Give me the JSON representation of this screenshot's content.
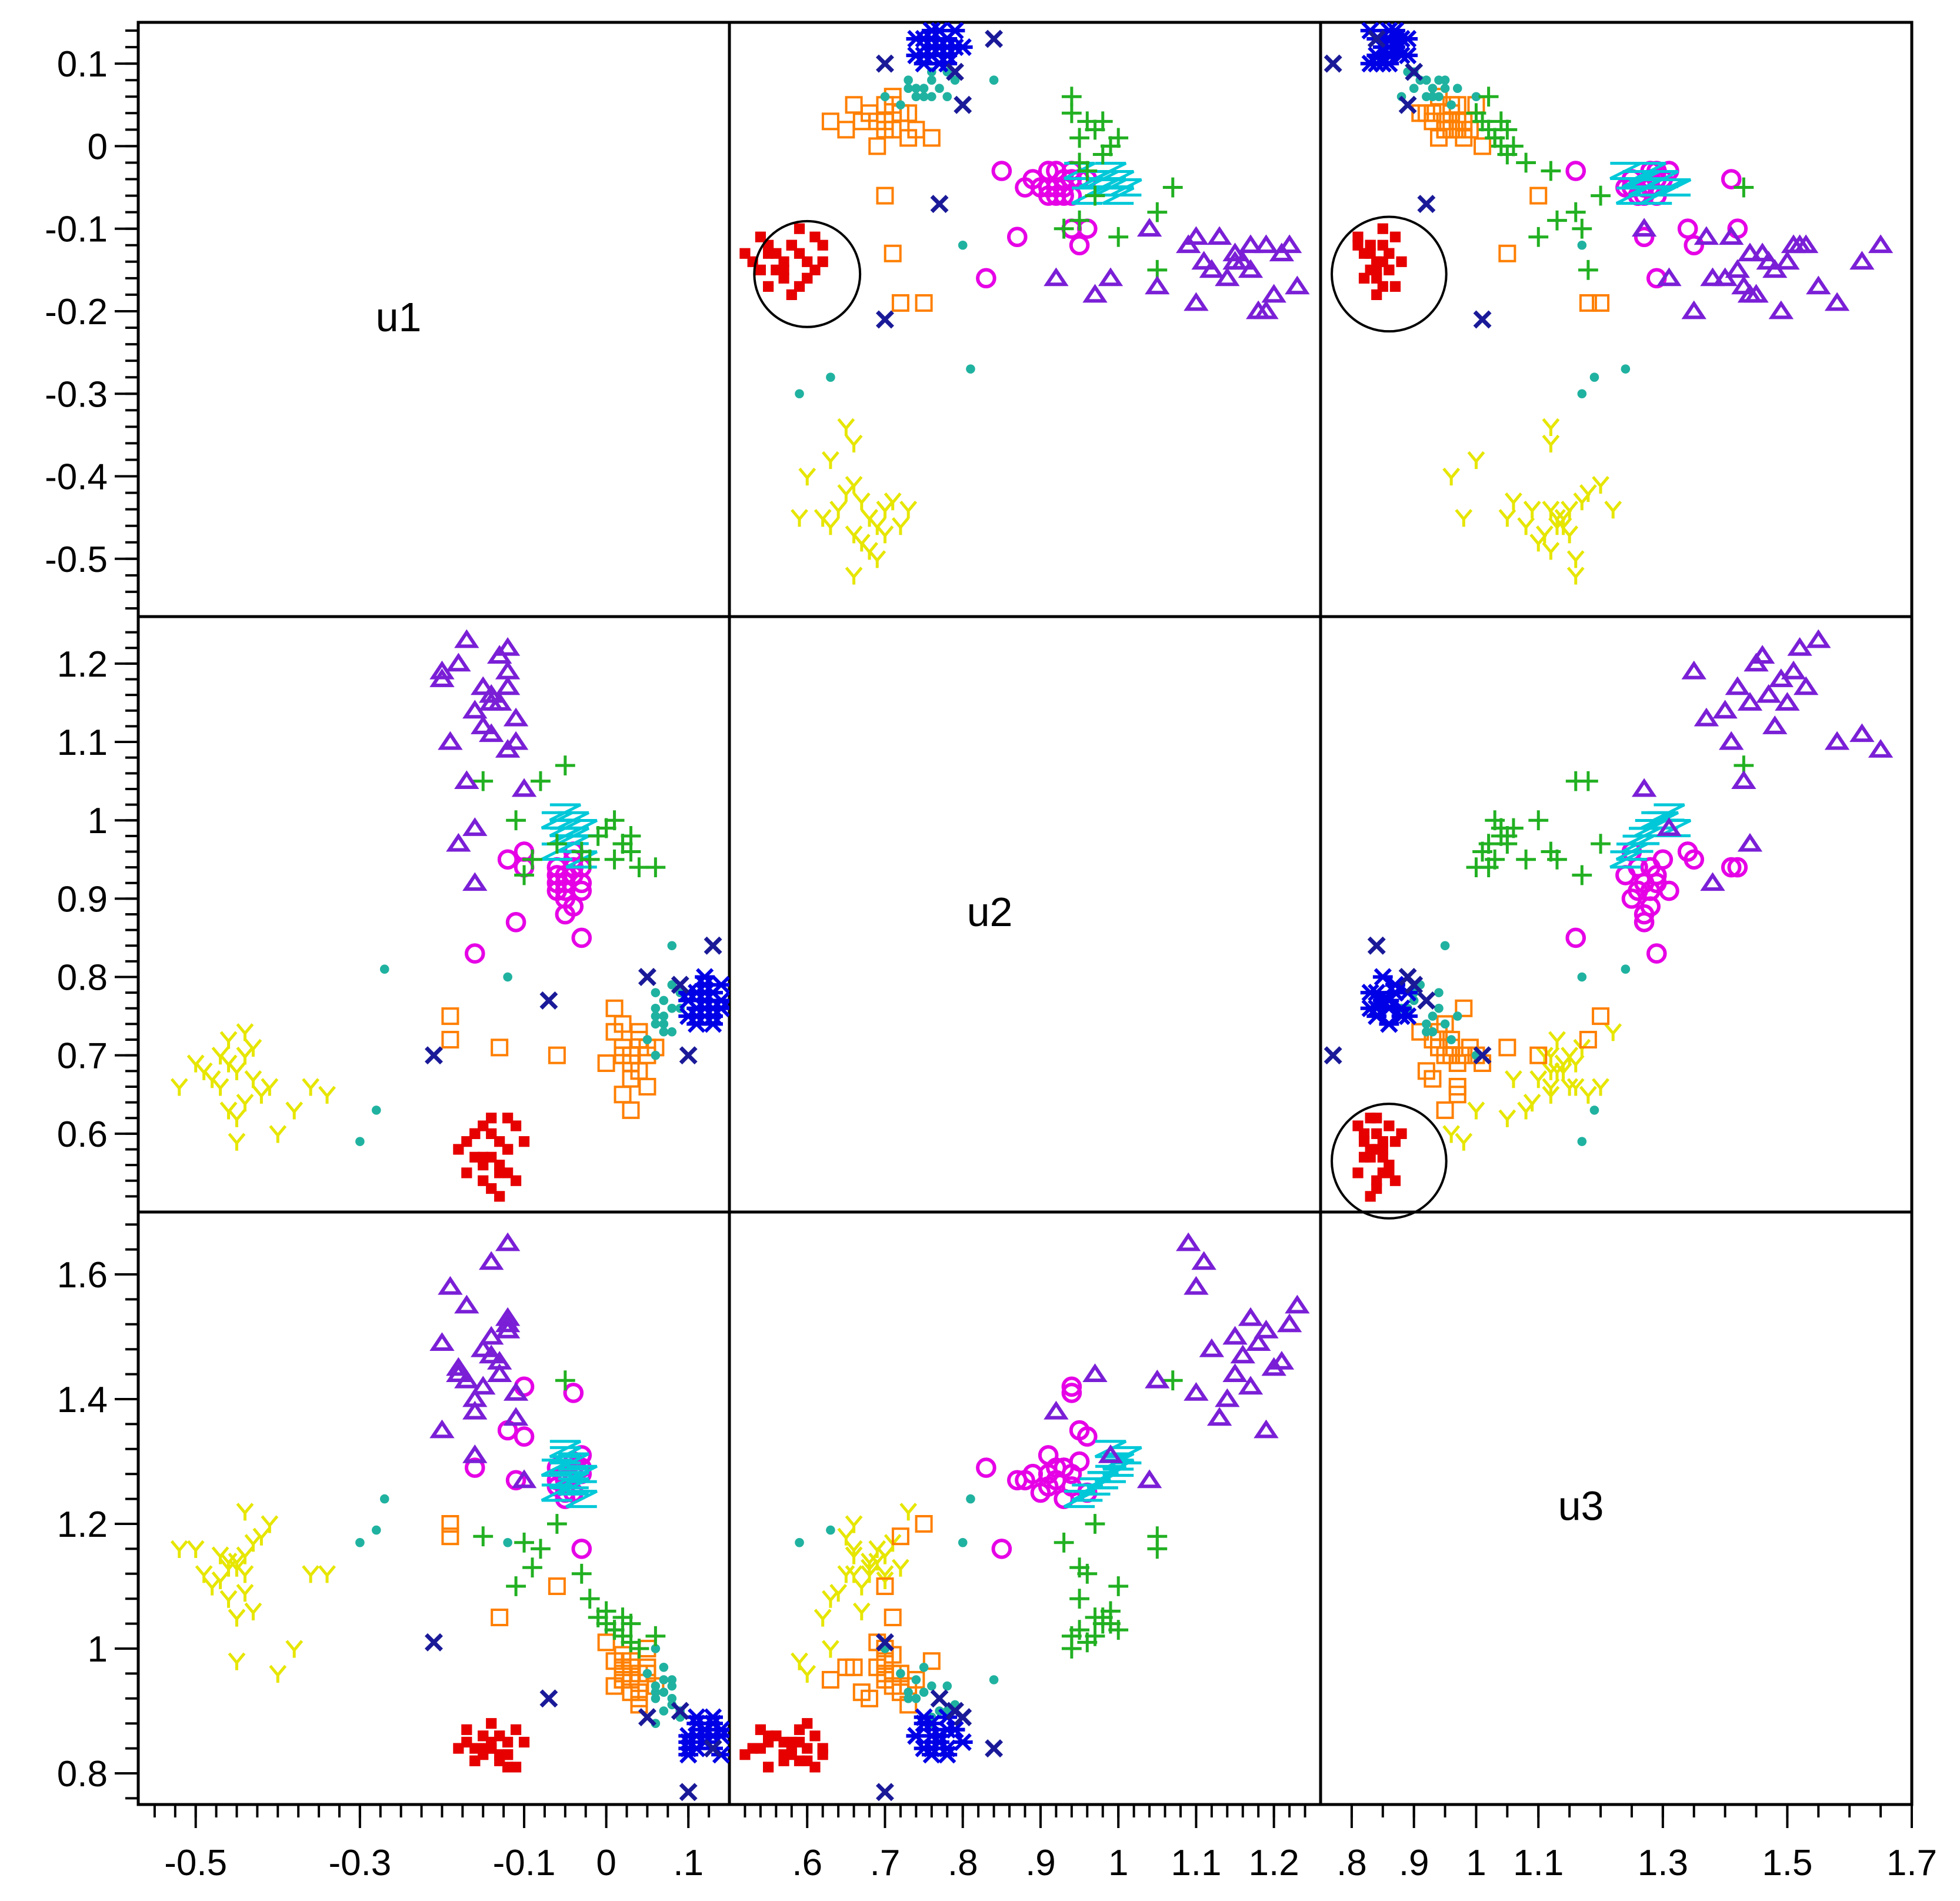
{
  "chart_data": {
    "type": "scatter",
    "title": "",
    "variables": [
      "u1",
      "u2",
      "u3"
    ],
    "ranges": {
      "u1": [
        -0.57,
        0.15
      ],
      "u2": [
        0.5,
        1.26
      ],
      "u3": [
        0.75,
        1.7
      ]
    },
    "x_ticks": {
      "u1": [
        -0.5,
        -0.3,
        -0.1,
        0,
        0.1
      ],
      "u2": [
        0.6,
        0.7,
        0.8,
        0.9,
        1,
        1.1,
        1.2
      ],
      "u3": [
        0.8,
        0.9,
        1,
        1.1,
        1.3,
        1.5,
        1.7
      ]
    },
    "x_tick_labels": {
      "u1": [
        "-0.5",
        "-0.3",
        "-0.1",
        "0",
        ".1"
      ],
      "u2": [
        ".6",
        ".7",
        ".8",
        ".9",
        "1",
        "1.1",
        "1.2"
      ],
      "u3": [
        ".8",
        ".9",
        "1",
        "1.1",
        "1.3",
        "1.5",
        "1.7"
      ]
    },
    "y_ticks": {
      "u1": [
        0.1,
        0,
        -0.1,
        -0.2,
        -0.3,
        -0.4,
        -0.5
      ],
      "u2": [
        1.2,
        1.1,
        1,
        0.9,
        0.8,
        0.7,
        0.6
      ],
      "u3": [
        1.6,
        1.4,
        1.2,
        1,
        0.8
      ]
    },
    "y_tick_labels": {
      "u1": [
        "0.1",
        "0",
        "-0.1",
        "-0.2",
        "-0.3",
        "-0.4",
        "-0.5"
      ],
      "u2": [
        "1.2",
        "1.1",
        "1",
        "0.9",
        "0.8",
        "0.7",
        "0.6"
      ],
      "u3": [
        "1.6",
        "1.4",
        "1.2",
        "1",
        "0.8"
      ]
    },
    "highlight": {
      "group": "red",
      "note": "red cluster circled in u1-u2, u1-u3 and u2-u3 panels",
      "circles": [
        {
          "xvar": "u2",
          "yvar": "u1",
          "cx": 0.6,
          "cy": -0.155,
          "r_data_x": 0.068
        },
        {
          "xvar": "u3",
          "yvar": "u1",
          "cx": 0.86,
          "cy": -0.155,
          "r_data_x": 0.092
        },
        {
          "xvar": "u3",
          "yvar": "u2",
          "cx": 0.86,
          "cy": 0.565,
          "r_data_x": 0.092
        }
      ]
    },
    "series": [
      {
        "name": "red",
        "color": "#e60000",
        "marker": "square-filled",
        "points": [
          [
            -0.15,
            0.57,
            0.83
          ],
          [
            -0.13,
            0.55,
            0.86
          ],
          [
            -0.16,
            0.6,
            0.82
          ],
          [
            -0.12,
            0.58,
            0.85
          ],
          [
            -0.14,
            0.53,
            0.84
          ],
          [
            -0.17,
            0.59,
            0.87
          ],
          [
            -0.11,
            0.61,
            0.81
          ],
          [
            -0.13,
            0.56,
            0.86
          ],
          [
            -0.15,
            0.54,
            0.84
          ],
          [
            -0.12,
            0.62,
            0.83
          ],
          [
            -0.16,
            0.57,
            0.82
          ],
          [
            -0.14,
            0.6,
            0.88
          ],
          [
            -0.1,
            0.59,
            0.85
          ],
          [
            -0.13,
            0.52,
            0.83
          ],
          [
            -0.18,
            0.58,
            0.84
          ],
          [
            -0.12,
            0.55,
            0.81
          ],
          [
            -0.15,
            0.61,
            0.86
          ],
          [
            -0.14,
            0.57,
            0.85
          ],
          [
            -0.11,
            0.54,
            0.87
          ],
          [
            -0.16,
            0.6,
            0.84
          ],
          [
            -0.13,
            0.59,
            0.82
          ],
          [
            -0.15,
            0.56,
            0.86
          ],
          [
            -0.12,
            0.58,
            0.83
          ],
          [
            -0.17,
            0.55,
            0.85
          ],
          [
            -0.14,
            0.62,
            0.84
          ]
        ]
      },
      {
        "name": "yellow",
        "color": "#e6e600",
        "marker": "tri-down",
        "points": [
          [
            -0.45,
            0.68,
            1.14
          ],
          [
            -0.44,
            0.7,
            1.12
          ],
          [
            -0.47,
            0.66,
            1.15
          ],
          [
            -0.5,
            0.69,
            1.16
          ],
          [
            -0.42,
            0.65,
            1.18
          ],
          [
            -0.46,
            0.72,
            1.13
          ],
          [
            -0.48,
            0.67,
            1.1
          ],
          [
            -0.44,
            0.64,
            1.09
          ],
          [
            -0.43,
            0.71,
            1.17
          ],
          [
            -0.45,
            0.62,
            1.05
          ],
          [
            -0.46,
            0.69,
            1.14
          ],
          [
            -0.49,
            0.68,
            1.12
          ],
          [
            -0.41,
            0.66,
            1.2
          ],
          [
            -0.44,
            0.73,
            1.22
          ],
          [
            -0.47,
            0.7,
            1.11
          ],
          [
            -0.36,
            0.66,
            1.12
          ],
          [
            -0.34,
            0.65,
            1.12
          ],
          [
            -0.38,
            0.63,
            1.0
          ],
          [
            -0.4,
            0.6,
            0.96
          ],
          [
            -0.45,
            0.59,
            0.98
          ],
          [
            -0.52,
            0.66,
            1.16
          ],
          [
            -0.45,
            0.68,
            1.13
          ],
          [
            -0.43,
            0.67,
            1.06
          ],
          [
            -0.46,
            0.63,
            1.08
          ],
          [
            -0.44,
            0.7,
            1.15
          ]
        ]
      },
      {
        "name": "orange",
        "color": "#ff7f00",
        "marker": "square-open",
        "points": [
          [
            0.02,
            0.7,
            0.95
          ],
          [
            0.04,
            0.72,
            0.93
          ],
          [
            0.03,
            0.69,
            0.97
          ],
          [
            0.05,
            0.71,
            0.96
          ],
          [
            0.01,
            0.73,
            0.94
          ],
          [
            0.03,
            0.7,
            0.98
          ],
          [
            0.04,
            0.68,
            0.92
          ],
          [
            0.02,
            0.74,
            0.95
          ],
          [
            0.05,
            0.7,
            1.0
          ],
          [
            0.03,
            0.67,
            0.93
          ],
          [
            0.04,
            0.72,
            0.96
          ],
          [
            0.02,
            0.71,
            0.99
          ],
          [
            0.0,
            0.69,
            1.01
          ],
          [
            0.06,
            0.71,
            0.94
          ],
          [
            -0.19,
            0.75,
            1.2
          ],
          [
            -0.19,
            0.72,
            1.18
          ],
          [
            -0.06,
            0.7,
            1.1
          ],
          [
            0.02,
            0.65,
            0.97
          ],
          [
            0.01,
            0.76,
            0.98
          ],
          [
            -0.13,
            0.71,
            1.05
          ],
          [
            0.03,
            0.63,
            0.95
          ],
          [
            0.05,
            0.66,
            0.97
          ],
          [
            0.04,
            0.73,
            0.91
          ],
          [
            0.02,
            0.7,
            0.96
          ]
        ]
      },
      {
        "name": "teal",
        "color": "#20b2a0",
        "marker": "dot",
        "points": [
          [
            0.06,
            0.75,
            0.93
          ],
          [
            0.07,
            0.77,
            0.9
          ],
          [
            0.08,
            0.73,
            0.92
          ],
          [
            0.06,
            0.78,
            0.94
          ],
          [
            0.09,
            0.76,
            0.89
          ],
          [
            0.07,
            0.74,
            0.95
          ],
          [
            0.08,
            0.79,
            0.91
          ],
          [
            0.05,
            0.72,
            0.96
          ],
          [
            0.06,
            0.76,
            0.88
          ],
          [
            0.07,
            0.75,
            0.97
          ],
          [
            -0.27,
            0.81,
            1.24
          ],
          [
            -0.28,
            0.63,
            1.19
          ],
          [
            -0.3,
            0.59,
            1.17
          ],
          [
            -0.12,
            0.8,
            1.17
          ],
          [
            0.08,
            0.84,
            0.95
          ],
          [
            0.06,
            0.7,
            1.0
          ],
          [
            0.07,
            0.73,
            0.93
          ],
          [
            0.09,
            0.78,
            0.9
          ],
          [
            0.08,
            0.76,
            0.94
          ],
          [
            0.06,
            0.74,
            0.92
          ]
        ]
      },
      {
        "name": "blue",
        "color": "#0000e6",
        "marker": "asterisk",
        "points": [
          [
            0.12,
            0.76,
            0.86
          ],
          [
            0.11,
            0.78,
            0.84
          ],
          [
            0.13,
            0.75,
            0.88
          ],
          [
            0.1,
            0.77,
            0.85
          ],
          [
            0.12,
            0.79,
            0.87
          ],
          [
            0.14,
            0.76,
            0.83
          ],
          [
            0.11,
            0.74,
            0.86
          ],
          [
            0.13,
            0.78,
            0.89
          ],
          [
            0.12,
            0.77,
            0.85
          ],
          [
            0.1,
            0.75,
            0.84
          ],
          [
            0.14,
            0.79,
            0.87
          ],
          [
            0.11,
            0.76,
            0.88
          ],
          [
            0.13,
            0.74,
            0.86
          ],
          [
            0.12,
            0.8,
            0.85
          ],
          [
            0.1,
            0.78,
            0.83
          ],
          [
            0.14,
            0.77,
            0.86
          ],
          [
            0.11,
            0.75,
            0.89
          ],
          [
            0.13,
            0.76,
            0.84
          ],
          [
            0.12,
            0.78,
            0.87
          ],
          [
            0.1,
            0.77,
            0.86
          ]
        ]
      },
      {
        "name": "navy",
        "color": "#1a1a99",
        "marker": "x",
        "points": [
          [
            0.1,
            0.7,
            0.77
          ],
          [
            -0.21,
            0.7,
            1.01
          ],
          [
            -0.07,
            0.77,
            0.92
          ],
          [
            0.13,
            0.84,
            0.84
          ],
          [
            0.05,
            0.8,
            0.89
          ],
          [
            0.09,
            0.79,
            0.9
          ]
        ]
      },
      {
        "name": "magenta",
        "color": "#e600e6",
        "marker": "circle-open",
        "points": [
          [
            -0.05,
            0.92,
            1.27
          ],
          [
            -0.04,
            0.93,
            1.29
          ],
          [
            -0.06,
            0.91,
            1.26
          ],
          [
            -0.03,
            0.94,
            1.28
          ],
          [
            -0.05,
            0.9,
            1.25
          ],
          [
            -0.04,
            0.95,
            1.3
          ],
          [
            -0.06,
            0.92,
            1.27
          ],
          [
            -0.03,
            0.91,
            1.31
          ],
          [
            -0.05,
            0.93,
            1.24
          ],
          [
            -0.04,
            0.89,
            1.28
          ],
          [
            -0.06,
            0.94,
            1.26
          ],
          [
            -0.03,
            0.92,
            1.29
          ],
          [
            -0.05,
            0.88,
            1.27
          ],
          [
            -0.04,
            0.96,
            1.25
          ],
          [
            -0.05,
            0.91,
            1.28
          ],
          [
            -0.1,
            0.96,
            1.34
          ],
          [
            -0.1,
            0.94,
            1.42
          ],
          [
            -0.11,
            0.87,
            1.27
          ],
          [
            -0.16,
            0.83,
            1.29
          ],
          [
            -0.03,
            0.85,
            1.16
          ],
          [
            -0.12,
            0.95,
            1.35
          ],
          [
            -0.04,
            0.94,
            1.41
          ],
          [
            -0.06,
            0.93,
            1.29
          ]
        ]
      },
      {
        "name": "cyan",
        "color": "#00c8d8",
        "marker": "zigzag",
        "points": [
          [
            -0.05,
            0.98,
            1.27
          ],
          [
            -0.04,
            1.0,
            1.3
          ],
          [
            -0.06,
            0.96,
            1.25
          ],
          [
            -0.03,
            0.99,
            1.28
          ],
          [
            -0.05,
            1.01,
            1.31
          ],
          [
            -0.04,
            0.97,
            1.26
          ],
          [
            -0.06,
            1.0,
            1.29
          ],
          [
            -0.03,
            0.95,
            1.24
          ],
          [
            -0.05,
            0.99,
            1.32
          ],
          [
            -0.04,
            0.98,
            1.27
          ]
        ]
      },
      {
        "name": "green",
        "color": "#22b022",
        "marker": "plus",
        "points": [
          [
            0.0,
            0.99,
            1.04
          ],
          [
            0.02,
            0.97,
            1.02
          ],
          [
            -0.01,
            0.98,
            1.05
          ],
          [
            0.03,
            0.96,
            1.01
          ],
          [
            0.01,
            1.0,
            1.03
          ],
          [
            -0.02,
            0.95,
            1.08
          ],
          [
            0.04,
            0.94,
            1.0
          ],
          [
            0.06,
            0.94,
            1.02
          ],
          [
            -0.05,
            1.07,
            1.43
          ],
          [
            -0.08,
            1.05,
            1.16
          ],
          [
            -0.15,
            1.05,
            1.18
          ],
          [
            -0.11,
            1.0,
            1.1
          ],
          [
            -0.09,
            0.95,
            1.13
          ],
          [
            -0.06,
            0.97,
            1.2
          ],
          [
            0.0,
            0.99,
            1.06
          ],
          [
            0.03,
            0.98,
            1.04
          ],
          [
            0.01,
            0.95,
            1.03
          ],
          [
            0.02,
            0.97,
            1.05
          ],
          [
            -0.03,
            0.96,
            1.12
          ],
          [
            -0.1,
            0.93,
            1.17
          ]
        ]
      },
      {
        "name": "purple",
        "color": "#7a1fd6",
        "marker": "triangle-open",
        "points": [
          [
            -0.2,
            1.18,
            1.49
          ],
          [
            -0.18,
            1.2,
            1.45
          ],
          [
            -0.15,
            1.17,
            1.42
          ],
          [
            -0.12,
            1.19,
            1.51
          ],
          [
            -0.14,
            1.16,
            1.47
          ],
          [
            -0.17,
            1.23,
            1.55
          ],
          [
            -0.13,
            1.15,
            1.44
          ],
          [
            -0.12,
            1.22,
            1.52
          ],
          [
            -0.16,
            1.14,
            1.4
          ],
          [
            -0.11,
            1.13,
            1.37
          ],
          [
            -0.19,
            1.1,
            1.58
          ],
          [
            -0.17,
            1.05,
            1.43
          ],
          [
            -0.18,
            0.97,
            1.44
          ],
          [
            -0.16,
            0.92,
            1.38
          ],
          [
            -0.14,
            1.11,
            1.62
          ],
          [
            -0.12,
            1.09,
            1.65
          ],
          [
            -0.15,
            1.12,
            1.48
          ],
          [
            -0.2,
            1.19,
            1.35
          ],
          [
            -0.16,
            0.99,
            1.31
          ],
          [
            -0.13,
            1.21,
            1.46
          ],
          [
            -0.11,
            1.1,
            1.41
          ],
          [
            -0.1,
            1.04,
            1.27
          ],
          [
            -0.14,
            1.15,
            1.5
          ],
          [
            -0.12,
            1.17,
            1.53
          ]
        ]
      }
    ]
  }
}
